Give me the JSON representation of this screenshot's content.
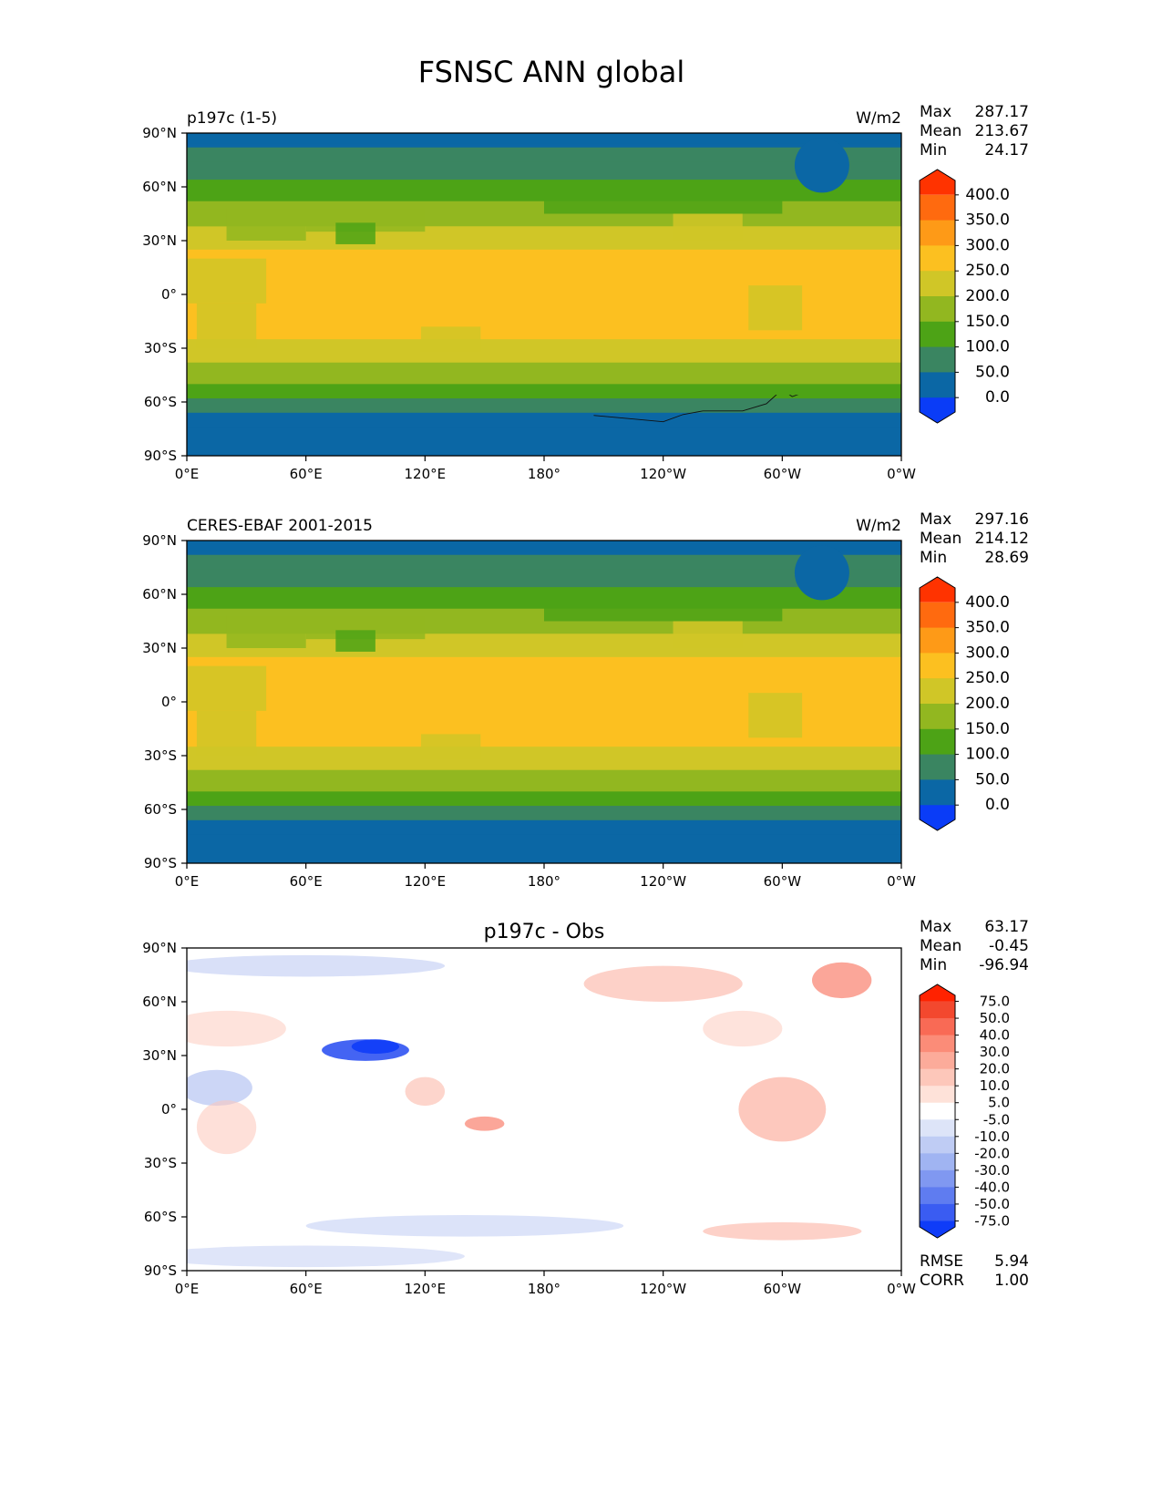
{
  "title": "FSNSC ANN global",
  "xticks": [
    "0°E",
    "60°E",
    "120°E",
    "180°",
    "120°W",
    "60°W",
    "0°W"
  ],
  "yticks": [
    "90°N",
    "60°N",
    "30°N",
    "0°",
    "30°S",
    "60°S",
    "90°S"
  ],
  "panels": [
    {
      "left_title": "p197c (1-5)",
      "center_title": "",
      "units": "W/m2",
      "stats": [
        {
          "label": "Max",
          "value": "287.17"
        },
        {
          "label": "Mean",
          "value": "213.67"
        },
        {
          "label": "Min",
          "value": "24.17"
        }
      ],
      "colorbar": {
        "labels": [
          "400.0",
          "350.0",
          "300.0",
          "250.0",
          "200.0",
          "150.0",
          "100.0",
          "50.0",
          "0.0"
        ],
        "colors": [
          "#ff3300",
          "#ff6a0f",
          "#fe9a17",
          "#fcc020",
          "#d0c627",
          "#92b720",
          "#4da316",
          "#3a8561",
          "#0b67a5",
          "#0a3cf7"
        ]
      },
      "metrics": []
    },
    {
      "left_title": "CERES-EBAF 2001-2015",
      "center_title": "",
      "units": "W/m2",
      "stats": [
        {
          "label": "Max",
          "value": "297.16"
        },
        {
          "label": "Mean",
          "value": "214.12"
        },
        {
          "label": "Min",
          "value": "28.69"
        }
      ],
      "colorbar": {
        "labels": [
          "400.0",
          "350.0",
          "300.0",
          "250.0",
          "200.0",
          "150.0",
          "100.0",
          "50.0",
          "0.0"
        ],
        "colors": [
          "#ff3300",
          "#ff6a0f",
          "#fe9a17",
          "#fcc020",
          "#d0c627",
          "#92b720",
          "#4da316",
          "#3a8561",
          "#0b67a5",
          "#0a3cf7"
        ]
      },
      "metrics": []
    },
    {
      "left_title": "",
      "center_title": "p197c - Obs",
      "units": "",
      "stats": [
        {
          "label": "Max",
          "value": "63.17"
        },
        {
          "label": "Mean",
          "value": "-0.45"
        },
        {
          "label": "Min",
          "value": "-96.94"
        }
      ],
      "colorbar": {
        "labels": [
          "75.0",
          "50.0",
          "40.0",
          "30.0",
          "20.0",
          "10.0",
          "5.0",
          "-5.0",
          "-10.0",
          "-20.0",
          "-30.0",
          "-40.0",
          "-50.0",
          "-75.0"
        ],
        "colors": [
          "#ff2200",
          "#f3482e",
          "#f96a55",
          "#fb8c78",
          "#fcab9a",
          "#fdc7ba",
          "#fee2d9",
          "#ffffff",
          "#dde4f8",
          "#bfccf4",
          "#a0b4f2",
          "#8098f1",
          "#5f7cf0",
          "#3a5cf2",
          "#0f3cf8"
        ]
      },
      "metrics": [
        {
          "label": "RMSE",
          "value": "5.94"
        },
        {
          "label": "CORR",
          "value": "1.00"
        }
      ]
    }
  ]
}
